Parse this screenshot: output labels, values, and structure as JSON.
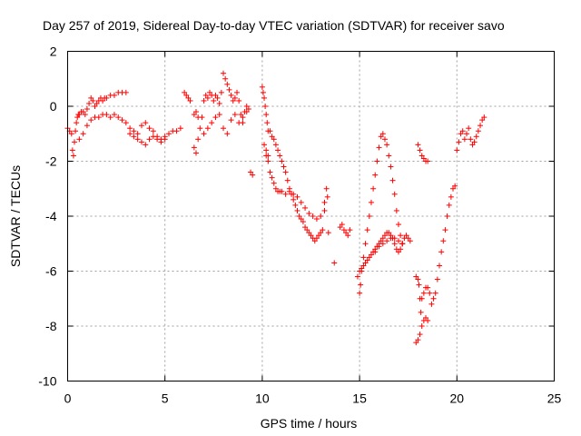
{
  "chart_data": {
    "type": "scatter",
    "title": "Day 257 of 2019, Sidereal Day-to-day VTEC variation (SDTVAR) for receiver savo",
    "xlabel": "GPS time / hours",
    "ylabel": "SDTVAR / TECUs",
    "xlim": [
      0,
      25
    ],
    "ylim": [
      -10,
      2
    ],
    "xticks": [
      "0",
      "5",
      "10",
      "15",
      "20",
      "25"
    ],
    "yticks": [
      "2",
      "0",
      "-2",
      "-4",
      "-6",
      "-8",
      "-10"
    ],
    "grid": true,
    "marker": "+",
    "color": "#ff0000",
    "series": [
      {
        "name": "SDTVAR",
        "x": [
          0.0,
          0.1,
          0.2,
          0.25,
          0.3,
          0.35,
          0.4,
          0.45,
          0.5,
          0.55,
          0.6,
          0.7,
          0.8,
          0.9,
          1.0,
          1.1,
          1.2,
          1.3,
          1.4,
          1.5,
          1.6,
          1.7,
          1.8,
          1.9,
          2.0,
          2.2,
          2.4,
          2.6,
          2.8,
          3.0,
          0.6,
          0.8,
          1.0,
          1.2,
          1.4,
          1.6,
          1.8,
          2.0,
          2.2,
          2.4,
          2.6,
          2.8,
          3.0,
          3.2,
          3.4,
          3.6,
          3.8,
          4.0,
          4.2,
          4.4,
          4.6,
          4.8,
          5.0,
          5.2,
          5.4,
          5.6,
          5.8,
          3.2,
          3.4,
          3.6,
          3.8,
          4.0,
          4.2,
          4.4,
          4.6,
          4.8,
          5.0,
          6.0,
          6.1,
          6.2,
          6.3,
          6.5,
          6.6,
          6.7,
          6.8,
          6.9,
          7.0,
          7.1,
          7.2,
          7.3,
          7.4,
          7.5,
          7.6,
          7.7,
          7.8,
          7.9,
          8.0,
          8.1,
          8.2,
          8.3,
          8.4,
          8.5,
          8.6,
          8.7,
          8.8,
          8.9,
          9.0,
          9.1,
          9.2,
          9.3,
          6.5,
          6.6,
          6.7,
          7.0,
          7.2,
          7.4,
          7.6,
          7.8,
          8.0,
          8.2,
          8.4,
          8.6,
          8.8,
          9.0,
          9.2,
          9.4,
          9.5,
          10.0,
          10.05,
          10.1,
          10.15,
          10.2,
          10.25,
          10.3,
          10.1,
          10.2,
          10.3,
          10.2,
          10.3,
          10.4,
          10.5,
          10.6,
          10.7,
          10.8,
          10.9,
          11.0,
          11.2,
          11.4,
          11.6,
          11.8,
          12.0,
          12.2,
          12.4,
          12.6,
          12.8,
          13.0,
          13.2,
          10.4,
          10.5,
          10.6,
          10.7,
          10.8,
          10.9,
          11.0,
          11.1,
          11.2,
          11.3,
          11.4,
          11.5,
          11.6,
          11.7,
          11.8,
          11.9,
          12.0,
          12.1,
          12.2,
          12.3,
          12.4,
          12.5,
          12.6,
          12.7,
          12.8,
          12.9,
          13.0,
          13.1,
          13.2,
          13.3,
          13.35,
          13.4,
          13.7,
          14.0,
          14.1,
          14.2,
          14.3,
          14.4,
          14.5,
          15.0,
          15.05,
          15.1,
          15.2,
          15.3,
          15.4,
          15.5,
          15.6,
          15.7,
          15.8,
          15.9,
          16.0,
          16.1,
          16.2,
          16.3,
          16.4,
          16.5,
          16.6,
          16.7,
          16.8,
          16.9,
          17.0,
          17.1,
          17.2,
          14.9,
          15.0,
          15.1,
          15.2,
          15.3,
          15.4,
          15.5,
          15.6,
          15.7,
          15.8,
          15.9,
          16.0,
          16.1,
          16.2,
          16.3,
          16.4,
          16.5,
          16.6,
          16.7,
          16.8,
          16.9,
          17.0,
          17.1,
          17.2,
          17.3,
          17.4,
          17.5,
          17.6,
          15.8,
          16.0,
          16.2,
          16.4,
          16.6,
          16.8,
          17.0,
          17.2,
          17.9,
          18.0,
          18.1,
          18.2,
          18.3,
          18.4,
          18.5,
          17.9,
          18.0,
          18.05,
          18.1,
          18.15,
          18.2,
          18.3,
          18.4,
          18.5,
          18.6,
          18.7,
          18.8,
          18.9,
          19.0,
          19.1,
          19.2,
          19.3,
          19.4,
          19.5,
          19.6,
          19.7,
          19.8,
          19.9,
          18.0,
          18.1,
          18.2,
          18.3,
          18.4,
          18.5,
          20.0,
          20.1,
          20.2,
          20.3,
          20.4,
          20.5,
          20.6,
          20.7,
          20.8,
          20.9,
          21.0,
          21.1,
          21.2,
          21.3,
          21.4
        ],
        "y": [
          -0.8,
          -0.9,
          -1.0,
          -1.6,
          -1.8,
          -1.3,
          -0.9,
          -0.6,
          -0.4,
          -0.3,
          -0.3,
          -0.2,
          -0.2,
          -0.3,
          -0.1,
          0.1,
          0.3,
          0.2,
          0.0,
          0.1,
          0.2,
          0.3,
          0.2,
          0.3,
          0.3,
          0.4,
          0.4,
          0.5,
          0.5,
          0.5,
          -1.2,
          -1.0,
          -0.7,
          -0.5,
          -0.4,
          -0.4,
          -0.3,
          -0.3,
          -0.4,
          -0.3,
          -0.4,
          -0.5,
          -0.6,
          -0.8,
          -0.9,
          -1.0,
          -0.7,
          -0.6,
          -0.8,
          -0.9,
          -1.1,
          -1.2,
          -1.1,
          -1.0,
          -0.9,
          -0.9,
          -0.8,
          -1.0,
          -1.1,
          -1.2,
          -1.3,
          -1.4,
          -1.2,
          -1.1,
          -1.2,
          -1.3,
          -1.2,
          0.5,
          0.4,
          0.3,
          0.2,
          -1.5,
          -1.7,
          -1.2,
          -0.8,
          -0.4,
          0.2,
          0.4,
          0.3,
          0.5,
          0.4,
          0.2,
          0.4,
          0.3,
          0.1,
          0.5,
          1.2,
          1.0,
          0.8,
          0.6,
          0.4,
          0.2,
          0.3,
          0.5,
          0.2,
          -0.3,
          -0.6,
          -0.2,
          0.0,
          -0.1,
          -0.3,
          -0.2,
          -0.4,
          -1.0,
          -0.8,
          -0.6,
          -0.4,
          -0.3,
          -0.8,
          -1.0,
          -0.5,
          -0.3,
          -0.6,
          -0.4,
          -0.2,
          -2.4,
          -2.5,
          0.7,
          0.5,
          0.3,
          0.0,
          -0.3,
          -0.6,
          -0.9,
          -1.4,
          -1.6,
          -1.8,
          -1.8,
          -2.0,
          -2.4,
          -2.6,
          -2.8,
          -3.0,
          -3.1,
          -3.1,
          -3.1,
          -3.2,
          -3.1,
          -3.2,
          -3.3,
          -3.5,
          -3.7,
          -3.9,
          -4.0,
          -4.1,
          -4.0,
          -3.8,
          -0.9,
          -1.1,
          -1.2,
          -1.4,
          -1.6,
          -1.8,
          -2.0,
          -2.2,
          -2.4,
          -2.7,
          -3.0,
          -3.2,
          -3.4,
          -3.6,
          -3.8,
          -4.0,
          -4.1,
          -4.2,
          -4.4,
          -4.5,
          -4.6,
          -4.7,
          -4.8,
          -4.9,
          -4.8,
          -4.7,
          -4.6,
          -4.5,
          -3.5,
          -3.0,
          -3.3,
          -4.6,
          -5.7,
          -4.4,
          -4.3,
          -4.5,
          -4.6,
          -4.7,
          -4.5,
          -6.8,
          -6.5,
          -6.0,
          -5.5,
          -5.0,
          -4.5,
          -4.0,
          -3.5,
          -3.0,
          -2.5,
          -2.0,
          -1.5,
          -1.1,
          -1.0,
          -1.2,
          -1.4,
          -1.8,
          -2.2,
          -2.7,
          -3.2,
          -3.8,
          -4.3,
          -4.7,
          -5.0,
          -6.2,
          -6.0,
          -5.9,
          -5.8,
          -5.7,
          -5.6,
          -5.5,
          -5.4,
          -5.3,
          -5.2,
          -5.1,
          -5.0,
          -4.9,
          -4.8,
          -4.7,
          -4.6,
          -4.6,
          -4.7,
          -4.8,
          -5.0,
          -5.2,
          -5.3,
          -5.2,
          -5.0,
          -4.8,
          -4.7,
          -4.8,
          -4.9,
          -5.3,
          -5.1,
          -5.0,
          -4.9,
          -4.8,
          -4.8,
          -4.9,
          -5.0,
          -8.6,
          -8.5,
          -8.3,
          -8.0,
          -7.8,
          -7.7,
          -7.8,
          -6.2,
          -6.3,
          -6.5,
          -7.0,
          -7.5,
          -7.0,
          -6.8,
          -6.6,
          -6.6,
          -6.8,
          -7.2,
          -7.0,
          -6.8,
          -6.3,
          -5.8,
          -5.3,
          -4.9,
          -4.5,
          -4.0,
          -3.6,
          -3.3,
          -3.0,
          -2.9,
          -1.4,
          -1.6,
          -1.8,
          -1.9,
          -2.0,
          -2.0,
          -1.6,
          -1.3,
          -1.0,
          -0.9,
          -1.2,
          -1.0,
          -0.8,
          -1.2,
          -1.4,
          -1.3,
          -1.1,
          -0.9,
          -0.7,
          -0.5,
          -0.4
        ]
      }
    ]
  }
}
